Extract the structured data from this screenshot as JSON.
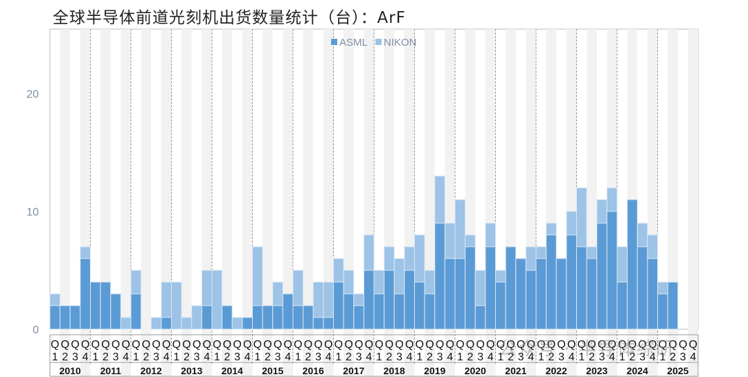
{
  "chart_data": {
    "type": "bar",
    "stacked": true,
    "title": "全球半导体前道光刻机出货数量统计（台）：ArF",
    "xlabel": "",
    "ylabel": "",
    "ylim": [
      0,
      25
    ],
    "yticks": [
      0,
      10,
      20
    ],
    "grid": false,
    "legend": "top-center",
    "years": [
      "2010",
      "2011",
      "2012",
      "2013",
      "2014",
      "2015",
      "2016",
      "2017",
      "2018",
      "2019",
      "2020",
      "2021",
      "2022",
      "2023",
      "2024",
      "2025"
    ],
    "quarters": [
      "Q1",
      "Q2",
      "Q3",
      "Q4"
    ],
    "series": [
      {
        "name": "ASML",
        "color": "#5b9bd5",
        "values": [
          2,
          2,
          2,
          6,
          4,
          4,
          3,
          0,
          3,
          0,
          0,
          1,
          0,
          0,
          0,
          2,
          0,
          2,
          0,
          1,
          2,
          2,
          2,
          3,
          2,
          2,
          1,
          1,
          4,
          3,
          2,
          5,
          3,
          5,
          3,
          5,
          4,
          3,
          9,
          6,
          6,
          7,
          2,
          7,
          4,
          7,
          6,
          5,
          6,
          8,
          6,
          8,
          7,
          6,
          9,
          10,
          4,
          11,
          7,
          6,
          3,
          4,
          null,
          null
        ]
      },
      {
        "name": "NIKON",
        "color": "#9dc3e6",
        "values": [
          1,
          0,
          0,
          1,
          0,
          0,
          0,
          1,
          2,
          0,
          1,
          3,
          4,
          1,
          2,
          3,
          5,
          0,
          1,
          0,
          5,
          0,
          2,
          0,
          3,
          0,
          3,
          3,
          2,
          2,
          1,
          3,
          2,
          2,
          3,
          2,
          4,
          2,
          4,
          3,
          5,
          1,
          3,
          2,
          1,
          0,
          0,
          2,
          1,
          1,
          0,
          2,
          5,
          1,
          2,
          2,
          3,
          0,
          2,
          2,
          1,
          0,
          null,
          null
        ]
      }
    ]
  },
  "watermark": "公众号 · 半导体综研"
}
